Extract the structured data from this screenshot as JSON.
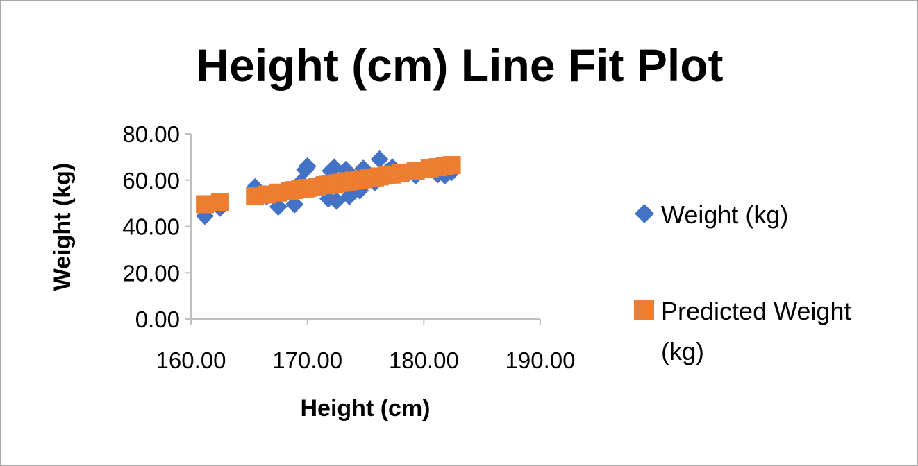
{
  "chart_data": {
    "type": "scatter",
    "title": "Height (cm) Line Fit  Plot",
    "xlabel": "Height (cm)",
    "ylabel": "Weight (kg)",
    "xlim": [
      160,
      190
    ],
    "ylim": [
      0,
      80
    ],
    "x_ticks": [
      "160.00",
      "170.00",
      "180.00",
      "190.00"
    ],
    "y_ticks": [
      "0.00",
      "20.00",
      "40.00",
      "60.00",
      "80.00"
    ],
    "grid": false,
    "legend_position": "right",
    "series": [
      {
        "name": "Weight (kg)",
        "marker": "diamond",
        "color": "#4472C4",
        "points": [
          [
            161.2,
            44.5
          ],
          [
            162.5,
            48.0
          ],
          [
            165.5,
            57.0
          ],
          [
            166.5,
            53.0
          ],
          [
            167.5,
            48.5
          ],
          [
            168.5,
            55.0
          ],
          [
            168.9,
            49.5
          ],
          [
            169.4,
            59.0
          ],
          [
            169.8,
            64.5
          ],
          [
            170.0,
            66.0
          ],
          [
            170.8,
            58.0
          ],
          [
            171.5,
            56.0
          ],
          [
            171.8,
            52.0
          ],
          [
            172.0,
            64.0
          ],
          [
            172.3,
            65.5
          ],
          [
            172.5,
            51.0
          ],
          [
            172.9,
            60.5
          ],
          [
            173.3,
            64.5
          ],
          [
            173.6,
            53.0
          ],
          [
            174.0,
            61.0
          ],
          [
            174.5,
            55.5
          ],
          [
            174.8,
            65.0
          ],
          [
            175.3,
            61.0
          ],
          [
            175.8,
            59.0
          ],
          [
            176.2,
            69.0
          ],
          [
            176.8,
            63.5
          ],
          [
            177.3,
            65.5
          ],
          [
            178.0,
            62.5
          ],
          [
            179.3,
            62.0
          ],
          [
            180.5,
            65.0
          ],
          [
            181.2,
            62.5
          ],
          [
            181.8,
            62.0
          ],
          [
            182.4,
            63.5
          ]
        ]
      },
      {
        "name": "Predicted Weight (kg)",
        "marker": "square",
        "color": "#ED7D31",
        "points": [
          [
            161.2,
            49.6
          ],
          [
            162.5,
            50.6
          ],
          [
            165.5,
            53.0
          ],
          [
            166.5,
            53.8
          ],
          [
            167.5,
            54.6
          ],
          [
            168.5,
            55.4
          ],
          [
            168.9,
            55.7
          ],
          [
            169.4,
            56.1
          ],
          [
            169.8,
            56.4
          ],
          [
            170.0,
            56.6
          ],
          [
            170.8,
            57.2
          ],
          [
            171.5,
            57.8
          ],
          [
            171.8,
            58.0
          ],
          [
            172.0,
            58.2
          ],
          [
            172.3,
            58.4
          ],
          [
            172.5,
            58.6
          ],
          [
            172.9,
            58.9
          ],
          [
            173.3,
            59.2
          ],
          [
            173.6,
            59.5
          ],
          [
            174.0,
            59.8
          ],
          [
            174.5,
            60.2
          ],
          [
            174.8,
            60.4
          ],
          [
            175.3,
            60.8
          ],
          [
            175.8,
            61.2
          ],
          [
            176.2,
            61.6
          ],
          [
            176.8,
            62.0
          ],
          [
            177.3,
            62.4
          ],
          [
            178.0,
            63.0
          ],
          [
            179.3,
            64.0
          ],
          [
            180.5,
            65.0
          ],
          [
            181.2,
            65.6
          ],
          [
            181.8,
            66.0
          ],
          [
            182.4,
            66.5
          ]
        ]
      }
    ]
  },
  "legend": {
    "weight_label": "Weight (kg)",
    "predicted_label_line1": "Predicted Weight",
    "predicted_label_line2": "(kg)"
  }
}
